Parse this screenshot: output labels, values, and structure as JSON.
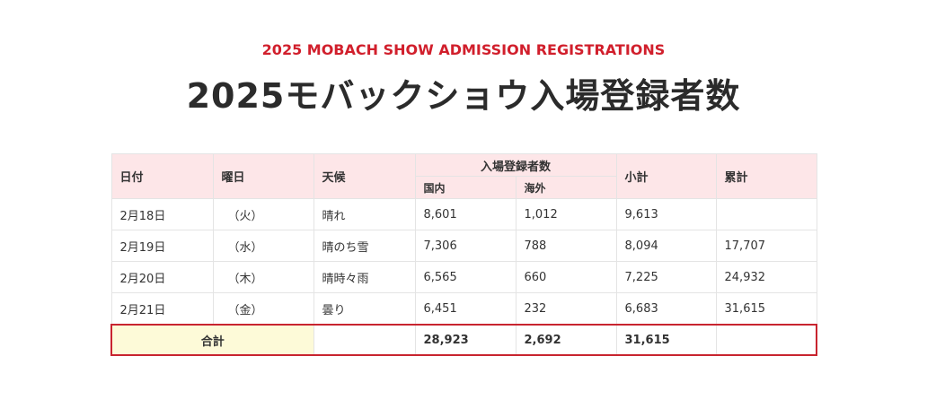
{
  "subtitle": "2025 MOBACH SHOW ADMISSION REGISTRATIONS",
  "title": "2025モバックショウ入場登録者数",
  "colors": {
    "accent_red": "#d11f2c",
    "header_bg": "#fde6e8",
    "total_label_bg": "#fdfad8"
  },
  "table": {
    "headers": {
      "date": "日付",
      "weekday": "曜日",
      "weather": "天候",
      "registrants": "入場登録者数",
      "domestic": "国内",
      "overseas": "海外",
      "subtotal": "小計",
      "cumulative": "累計"
    },
    "rows": [
      {
        "date": "2月18日",
        "weekday": "（火）",
        "weather": "晴れ",
        "domestic": "8,601",
        "overseas": "1,012",
        "subtotal": "9,613",
        "cumulative": ""
      },
      {
        "date": "2月19日",
        "weekday": "（水）",
        "weather": "晴のち雪",
        "domestic": "7,306",
        "overseas": "788",
        "subtotal": "8,094",
        "cumulative": "17,707"
      },
      {
        "date": "2月20日",
        "weekday": "（木）",
        "weather": "晴時々雨",
        "domestic": "6,565",
        "overseas": "660",
        "subtotal": "7,225",
        "cumulative": "24,932"
      },
      {
        "date": "2月21日",
        "weekday": "（金）",
        "weather": "曇り",
        "domestic": "6,451",
        "overseas": "232",
        "subtotal": "6,683",
        "cumulative": "31,615"
      }
    ],
    "total": {
      "label": "合計",
      "weather": "",
      "domestic": "28,923",
      "overseas": "2,692",
      "subtotal": "31,615",
      "cumulative": ""
    }
  }
}
